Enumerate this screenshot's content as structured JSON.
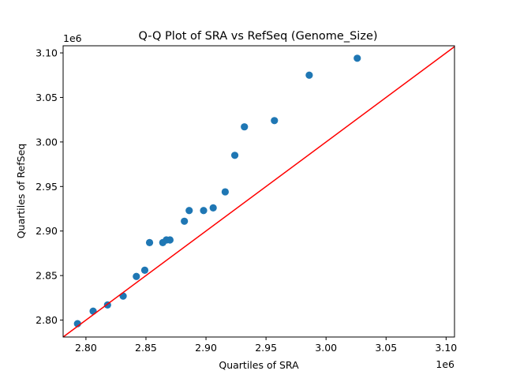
{
  "chart_data": {
    "type": "scatter",
    "title": "Q-Q Plot of SRA vs RefSeq (Genome_Size)",
    "xlabel": "Quartiles of SRA",
    "ylabel": "Quartiles of RefSeq",
    "x_offset_text": "1e6",
    "y_offset_text": "1e6",
    "xlim": [
      2.781,
      3.107
    ],
    "ylim": [
      2.781,
      3.108
    ],
    "x_ticks": [
      "2.80",
      "2.85",
      "2.90",
      "2.95",
      "3.00",
      "3.05",
      "3.10"
    ],
    "y_ticks": [
      "2.80",
      "2.85",
      "2.90",
      "2.95",
      "3.00",
      "3.05",
      "3.10"
    ],
    "grid": false,
    "point_color": "#1f77b4",
    "reference_line": {
      "type": "y=x",
      "color": "#ff0000"
    },
    "points": [
      {
        "x": 2.793,
        "y": 2.796
      },
      {
        "x": 2.806,
        "y": 2.81
      },
      {
        "x": 2.818,
        "y": 2.817
      },
      {
        "x": 2.831,
        "y": 2.827
      },
      {
        "x": 2.842,
        "y": 2.849
      },
      {
        "x": 2.849,
        "y": 2.856
      },
      {
        "x": 2.853,
        "y": 2.887
      },
      {
        "x": 2.864,
        "y": 2.887
      },
      {
        "x": 2.867,
        "y": 2.89
      },
      {
        "x": 2.87,
        "y": 2.89
      },
      {
        "x": 2.882,
        "y": 2.911
      },
      {
        "x": 2.886,
        "y": 2.923
      },
      {
        "x": 2.898,
        "y": 2.923
      },
      {
        "x": 2.906,
        "y": 2.926
      },
      {
        "x": 2.916,
        "y": 2.944
      },
      {
        "x": 2.924,
        "y": 2.985
      },
      {
        "x": 2.932,
        "y": 3.017
      },
      {
        "x": 2.957,
        "y": 3.024
      },
      {
        "x": 2.986,
        "y": 3.075
      },
      {
        "x": 3.026,
        "y": 3.094
      }
    ]
  }
}
